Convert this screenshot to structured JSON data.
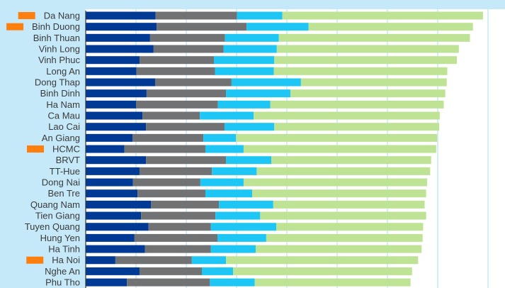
{
  "chart_data": {
    "type": "bar",
    "orientation": "horizontal",
    "stacked": true,
    "title": "",
    "xlabel": "",
    "ylabel": "",
    "xlim": [
      0,
      83
    ],
    "grid": true,
    "legend": "none",
    "categories": [
      "Da Nang",
      "Binh Duong",
      "Binh Thuan",
      "Vinh Long",
      "Vinh Phuc",
      "Long An",
      "Dong Thap",
      "Binh Dinh",
      "Ha Nam",
      "Ca Mau",
      "Lao Cai",
      "An Giang",
      "HCMC",
      "BRVT",
      "TT-Hue",
      "Dong Nai",
      "Ben Tre",
      "Quang Nam",
      "Tien Giang",
      "Tuyen Quang",
      "Hung Yen",
      "Ha Tinh",
      "Ha Noi",
      "Nghe An",
      "Phu Tho"
    ],
    "highlighted": [
      "Da Nang",
      "Binh Duong",
      "HCMC",
      "Ha Noi"
    ],
    "series": [
      {
        "color": "#003a94",
        "values": [
          13.9,
          14.1,
          12.8,
          13.5,
          10.7,
          10.1,
          13.8,
          12.1,
          10.0,
          11.3,
          12.0,
          9.3,
          7.7,
          12.0,
          10.7,
          9.4,
          10.3,
          13.0,
          11.0,
          12.5,
          9.7,
          11.8,
          5.9,
          10.7,
          8.2
        ]
      },
      {
        "color": "#717274",
        "values": [
          16.2,
          17.9,
          14.9,
          13.9,
          14.8,
          15.6,
          15.2,
          15.8,
          16.3,
          11.4,
          15.6,
          14.1,
          16.1,
          15.9,
          14.4,
          13.4,
          13.5,
          13.5,
          14.8,
          12.4,
          16.5,
          13.1,
          15.2,
          12.4,
          16.5
        ]
      },
      {
        "color": "#1dc6f4",
        "values": [
          9.0,
          12.3,
          10.7,
          10.6,
          12.0,
          11.7,
          13.8,
          12.8,
          10.4,
          10.7,
          9.9,
          6.5,
          7.6,
          9.0,
          8.9,
          8.6,
          9.3,
          10.8,
          8.9,
          13.0,
          9.7,
          8.9,
          6.8,
          6.2,
          8.9
        ]
      },
      {
        "color": "#bfe394",
        "values": [
          39.9,
          32.7,
          38.0,
          36.2,
          36.3,
          34.5,
          29.0,
          30.8,
          34.5,
          37.0,
          32.8,
          40.0,
          38.3,
          31.8,
          34.5,
          36.5,
          34.6,
          30.1,
          33.0,
          29.2,
          31.1,
          33.0,
          38.2,
          35.6,
          31.0
        ]
      }
    ],
    "colors": {
      "highlight_marker": "#ff7f0e",
      "plot_background": "#ffffff",
      "panel_background": "#c6e9f9",
      "gridline": "#c6e9f9",
      "axis": "#333333"
    }
  }
}
